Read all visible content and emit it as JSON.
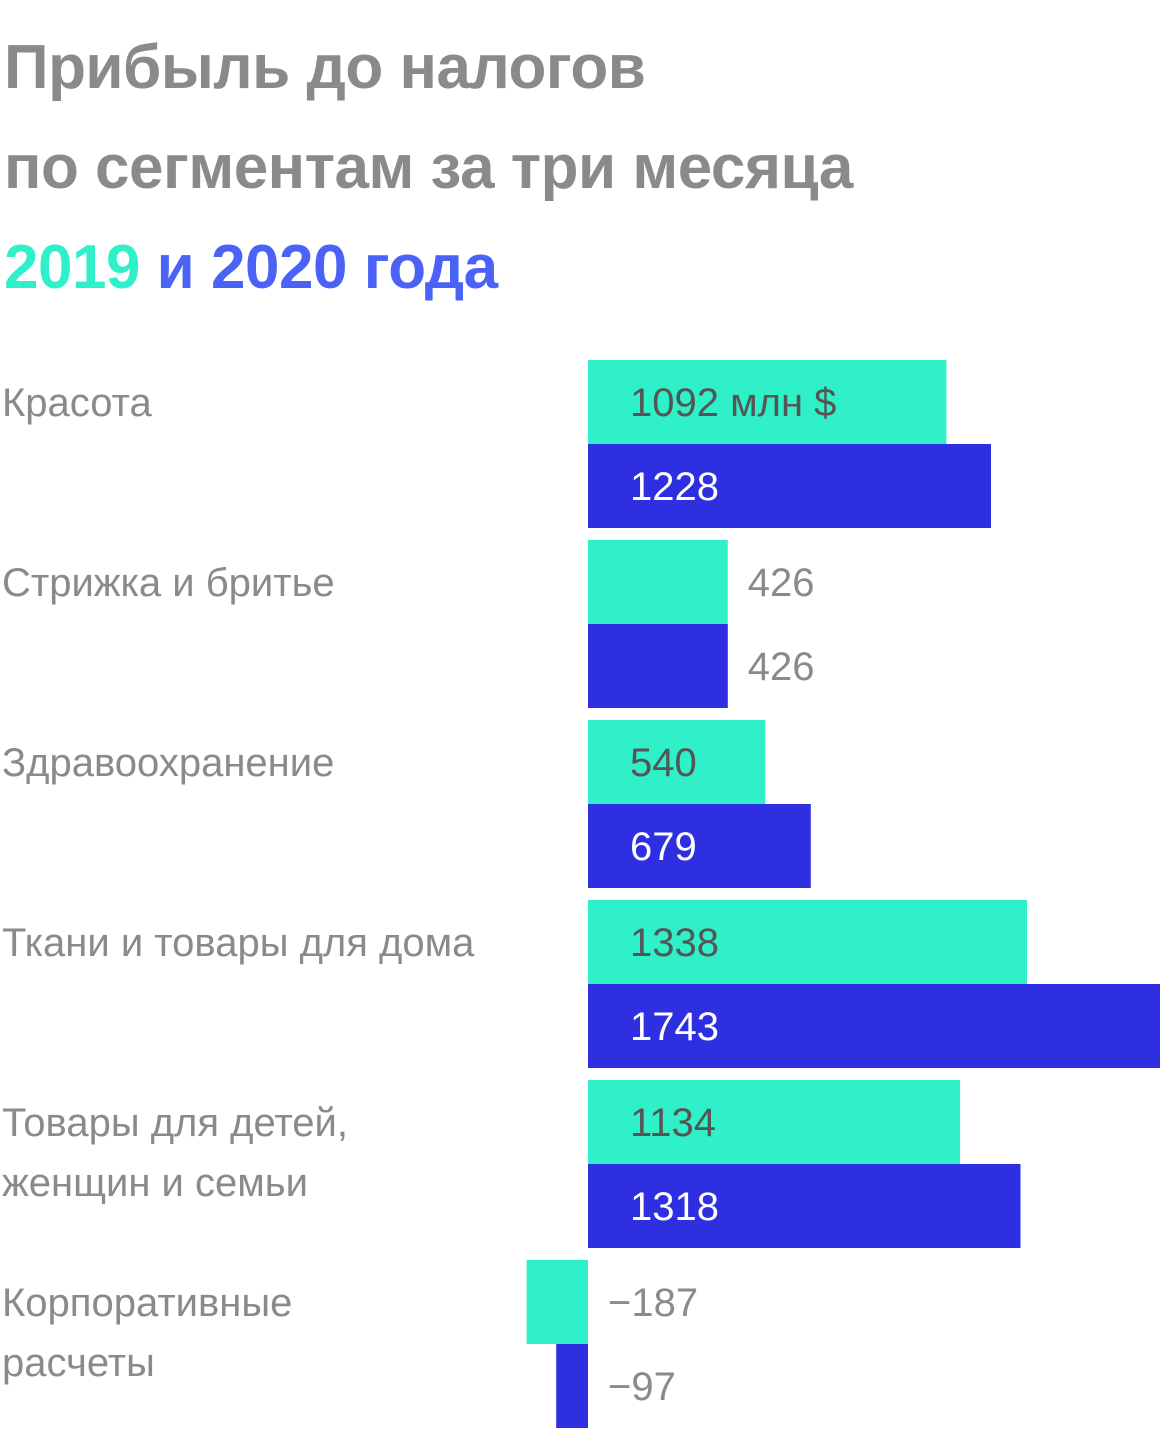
{
  "title": {
    "line1": "Прибыль до налогов",
    "line2": "по сегментам за три месяца",
    "year1": "2019",
    "connector": "и",
    "year2": "2020",
    "suffix": "года"
  },
  "colors": {
    "series_2019": "#2ff0c8",
    "series_2020": "#2f2fe2",
    "label_gray": "#8a8a8a",
    "label_dark": "#555555",
    "label_white": "#ffffff"
  },
  "chart_data": {
    "type": "bar",
    "orientation": "horizontal",
    "categories": [
      [
        "Красота"
      ],
      [
        "Стрижка и бритье"
      ],
      [
        "Здравоохранение"
      ],
      [
        "Ткани и товары для дома"
      ],
      [
        "Товары для детей,",
        "женщин и семьи"
      ],
      [
        "Корпоративные",
        "расчеты"
      ]
    ],
    "series": [
      {
        "name": "2019",
        "values": [
          1092,
          426,
          540,
          1338,
          1134,
          -187
        ],
        "value_labels": [
          "1092 млн $",
          "426",
          "540",
          "1338",
          "1134",
          "−187"
        ]
      },
      {
        "name": "2020",
        "values": [
          1228,
          426,
          679,
          1743,
          1318,
          -97
        ],
        "value_labels": [
          "1228",
          "426",
          "679",
          "1743",
          "1318",
          "−97"
        ]
      }
    ],
    "unit": "млн $",
    "xlim": [
      -187,
      1743
    ],
    "grid": false,
    "legend": "none"
  }
}
